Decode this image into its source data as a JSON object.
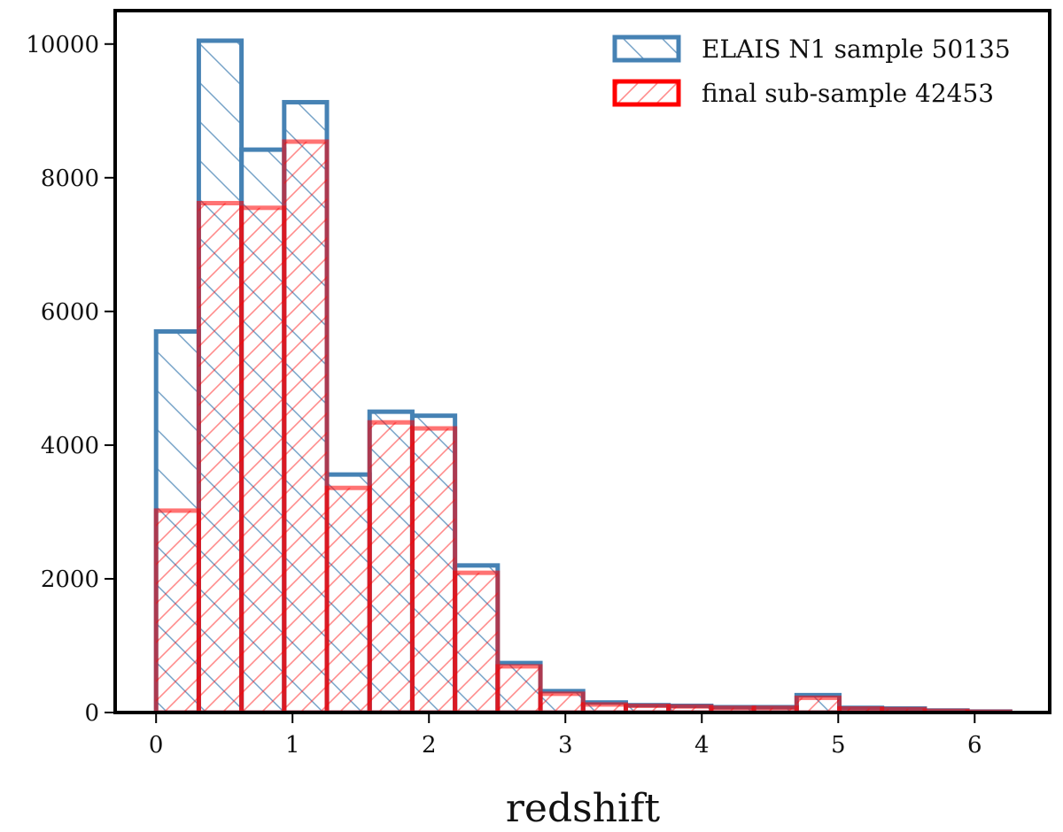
{
  "chart_data": {
    "type": "bar",
    "subtype": "histogram",
    "xlabel": "redshift",
    "ylabel": "",
    "title": "",
    "xlim": [
      -0.3,
      6.55
    ],
    "ylim": [
      0,
      10500
    ],
    "xticks": [
      0,
      1,
      2,
      3,
      4,
      5,
      6
    ],
    "yticks": [
      0,
      2000,
      4000,
      6000,
      8000,
      10000
    ],
    "grid": false,
    "legend_position": "top-right",
    "bin_edges": [
      0,
      0.313,
      0.626,
      0.939,
      1.252,
      1.565,
      1.878,
      2.191,
      2.504,
      2.817,
      3.13,
      3.443,
      3.756,
      4.069,
      4.382,
      4.695,
      5.008,
      5.321,
      5.634,
      5.947,
      6.26
    ],
    "series": [
      {
        "name": "ELAIS N1 sample 50135",
        "color": "#4682b4",
        "hatch": "backslash",
        "values": [
          5700,
          10050,
          8420,
          9130,
          3560,
          4500,
          4440,
          2200,
          740,
          320,
          150,
          110,
          100,
          80,
          80,
          260,
          70,
          60,
          30,
          15
        ]
      },
      {
        "name": "final sub-sample 42453",
        "color": "#ff0000",
        "hatch": "slash",
        "values": [
          3020,
          7620,
          7550,
          8540,
          3360,
          4340,
          4250,
          2090,
          690,
          280,
          120,
          100,
          90,
          70,
          70,
          220,
          60,
          50,
          25,
          12
        ]
      }
    ]
  }
}
